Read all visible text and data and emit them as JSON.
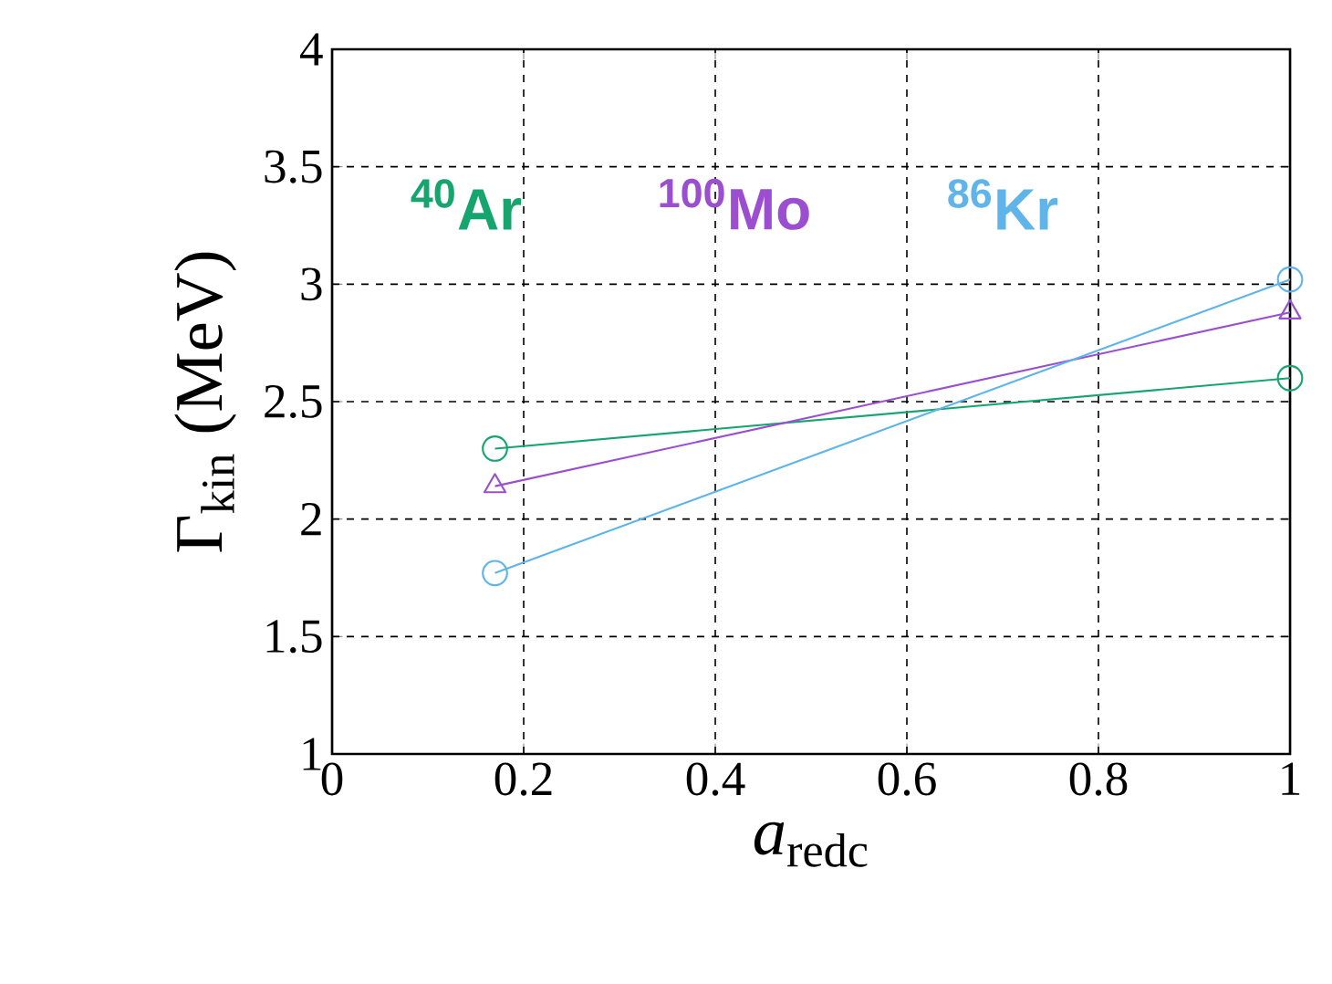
{
  "chart_data": {
    "type": "line",
    "xlabel": "*a*$_{redc}$",
    "ylabel": "Γ$_{kin}$ (MeV)",
    "x": [
      0.17,
      1
    ],
    "series": [
      {
        "name": "$^{40}$Ar",
        "color": "#16a56e",
        "values": [
          2.3,
          2.6
        ],
        "marker": "circle"
      },
      {
        "name": "$^{100}$Mo",
        "color": "#9b4fd0",
        "values": [
          2.14,
          2.88
        ],
        "marker": "triangle"
      },
      {
        "name": "$^{86}$Kr",
        "color": "#5fb4ea",
        "values": [
          1.77,
          3.02
        ],
        "marker": "circle"
      }
    ],
    "xlim": [
      0,
      1
    ],
    "ylim": [
      1,
      4
    ],
    "xticks": [
      0,
      0.2,
      0.4,
      0.6,
      0.8,
      1
    ],
    "yticks": [
      1,
      1.5,
      2,
      2.5,
      3,
      3.5,
      4
    ],
    "grid": true,
    "legend": "top",
    "line_style": "solid"
  }
}
